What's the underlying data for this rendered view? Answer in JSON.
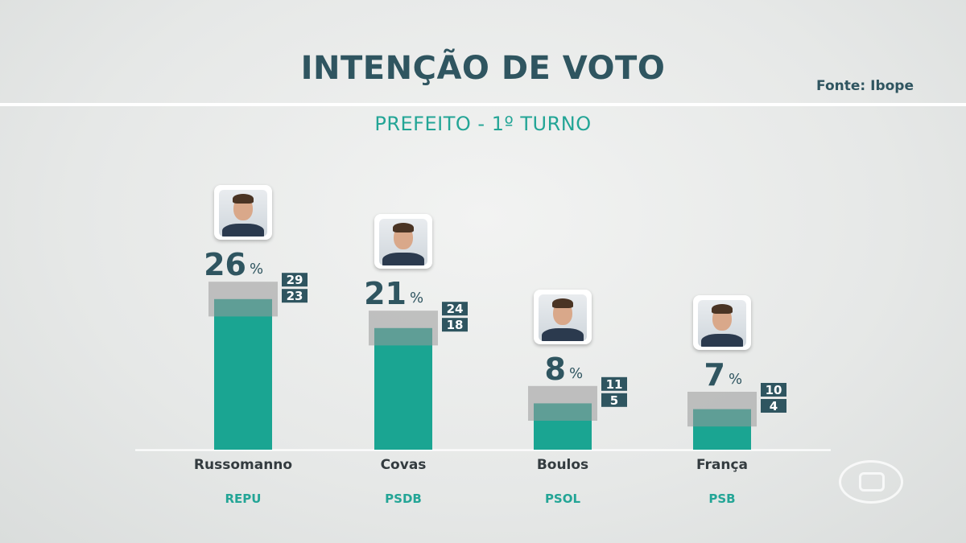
{
  "header": {
    "title": "INTENÇÃO DE VOTO",
    "source": "Fonte: Ibope",
    "subtitle": "PREFEITO - 1º TURNO"
  },
  "colors": {
    "bar": "#1aa592",
    "margin_band": "#999999",
    "range_box": "#2f5560",
    "text_dark": "#2f5560",
    "accent_teal": "#23a596",
    "accent_blue": "#3a64a6",
    "accent_yellow": "#f0c21e"
  },
  "chart_data": {
    "type": "bar",
    "title": "INTENÇÃO DE VOTO",
    "subtitle": "PREFEITO - 1º TURNO",
    "categories": [
      "Russomanno",
      "Covas",
      "Boulos",
      "França"
    ],
    "parties": [
      "REPU",
      "PSDB",
      "PSOL",
      "PSB"
    ],
    "values": [
      26,
      21,
      8,
      7
    ],
    "upper": [
      29,
      24,
      11,
      10
    ],
    "lower": [
      23,
      18,
      5,
      4
    ],
    "unit": "%",
    "photo_accent_colors": [
      "#3a64a6",
      "#3a64a6",
      "#f0c21e",
      "#f0c21e"
    ],
    "photo_icons": [
      "candidate-photo-icon",
      "candidate-photo-icon",
      "candidate-photo-icon",
      "candidate-photo-icon"
    ],
    "ylim": [
      0,
      30
    ],
    "grid": false,
    "legend": "none"
  }
}
